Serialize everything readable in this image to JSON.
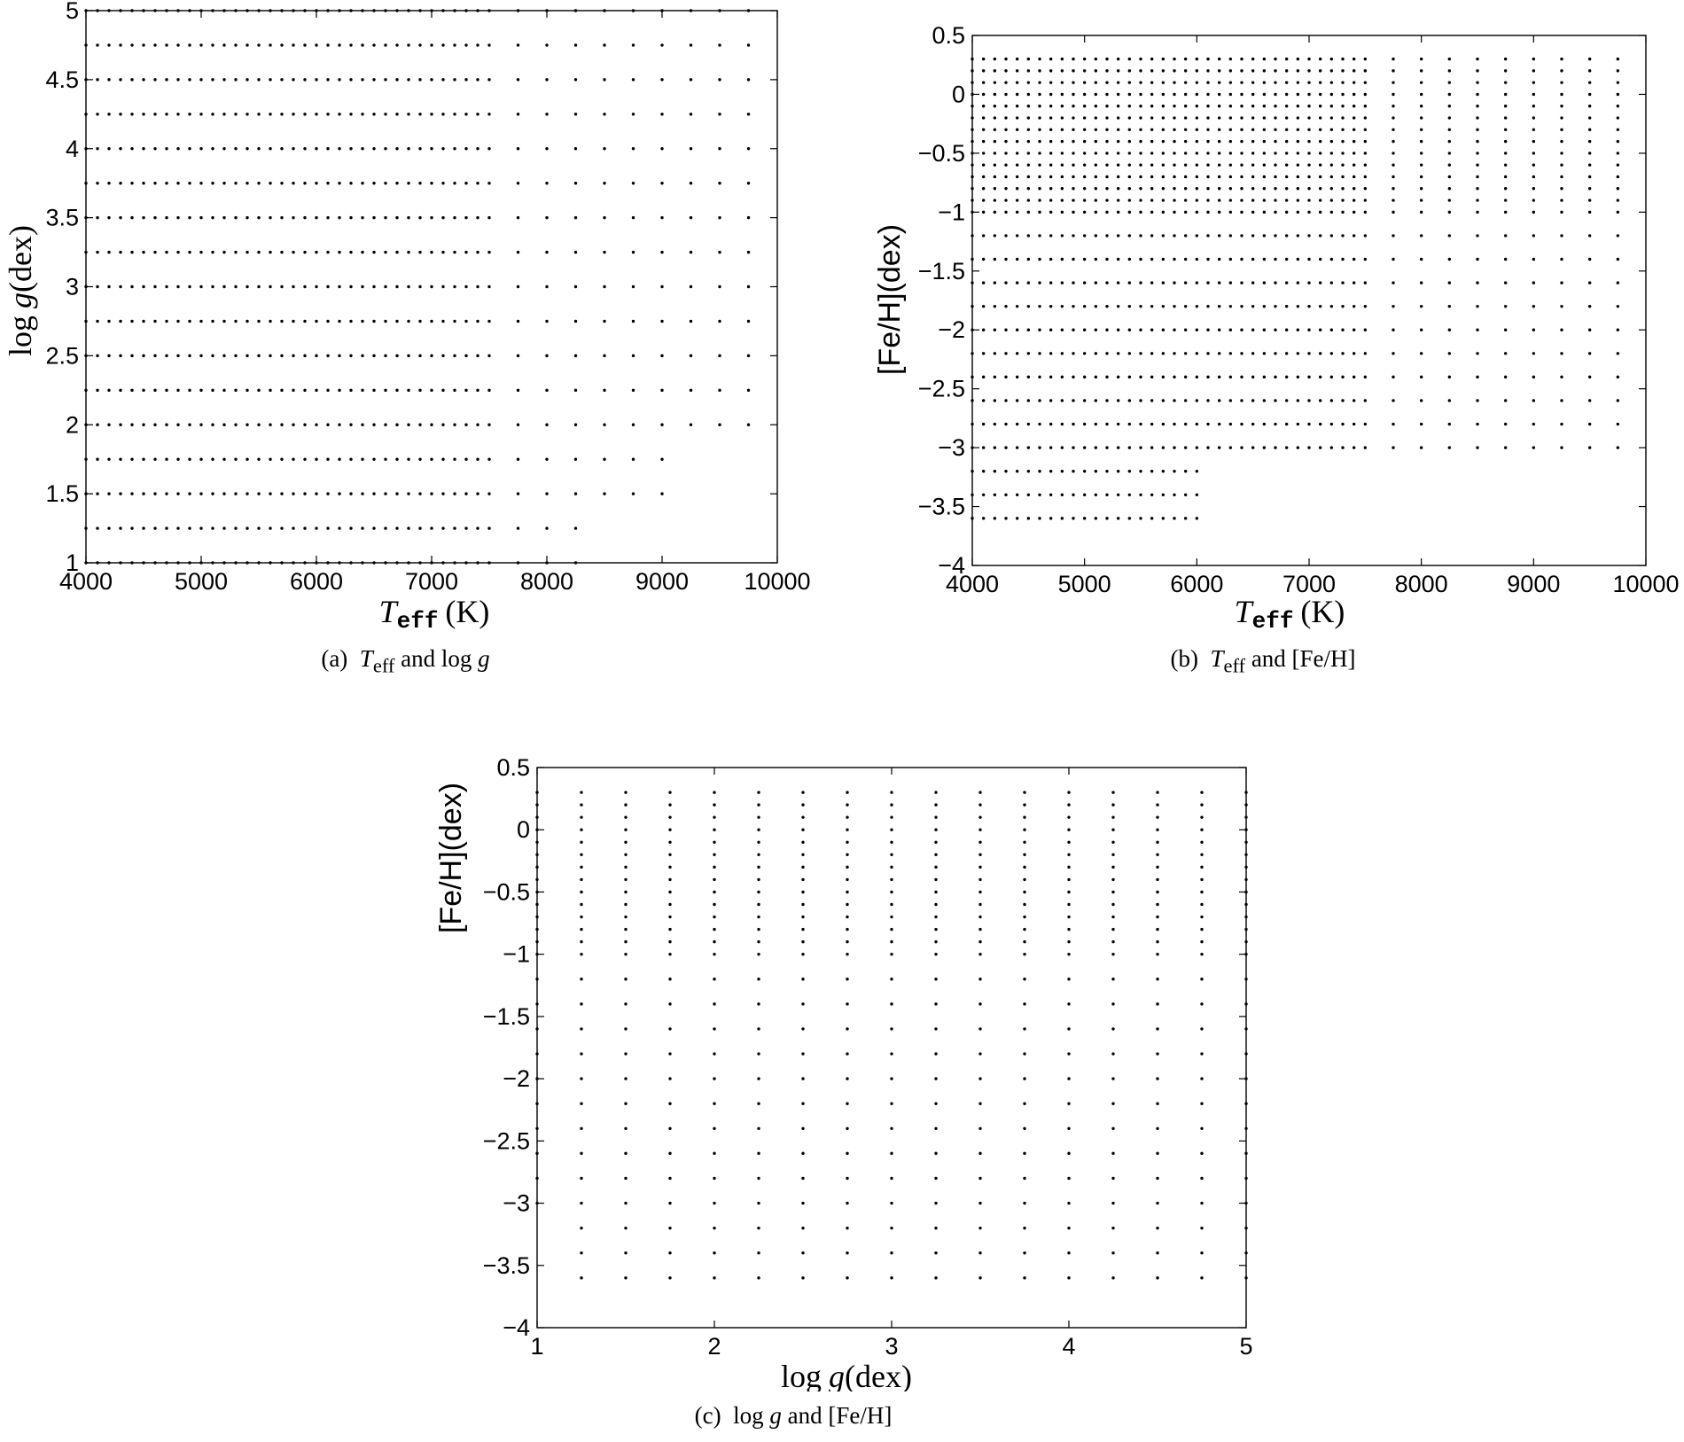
{
  "figures": {
    "a": {
      "caption_prefix": "(a)",
      "caption_var1": "T",
      "caption_sub1": "eff",
      "caption_mid": "and log",
      "caption_var2": "g",
      "xlabel_var": "T",
      "xlabel_sub": "eff",
      "xlabel_unit": "(K)",
      "ylabel_log": "log",
      "ylabel_var": "g",
      "ylabel_unit": "(dex)"
    },
    "b": {
      "caption_prefix": "(b)",
      "caption_var1": "T",
      "caption_sub1": "eff",
      "caption_mid": "and [Fe/H]",
      "xlabel_var": "T",
      "xlabel_sub": "eff",
      "xlabel_unit": "(K)",
      "ylabel": "[Fe/H](dex)"
    },
    "c": {
      "caption_prefix": "(c)",
      "caption_log": "log",
      "caption_var1": "g",
      "caption_mid": "and [Fe/H]",
      "xlabel_log": "log",
      "xlabel_var": "g",
      "xlabel_unit": "(dex)",
      "ylabel": "[Fe/H](dex)"
    }
  },
  "chart_data": [
    {
      "id": "a",
      "type": "scatter",
      "xlim": [
        4000,
        10000
      ],
      "ylim": [
        1,
        5
      ],
      "xticks": [
        4000,
        5000,
        6000,
        7000,
        8000,
        9000,
        10000
      ],
      "yticks": [
        1,
        1.5,
        2,
        2.5,
        3,
        3.5,
        4,
        4.5,
        5
      ],
      "xtick_labels": [
        "4000",
        "5000",
        "6000",
        "7000",
        "8000",
        "9000",
        "10000"
      ],
      "ytick_labels": [
        "1",
        "1.5",
        "2",
        "2.5",
        "3",
        "3.5",
        "4",
        "4.5",
        "5"
      ],
      "grid": false,
      "grid_description": {
        "cool_teff": {
          "start": 4000,
          "stop": 7500,
          "step": 100
        },
        "hot_teff": {
          "start": 7750,
          "stop": 9750,
          "step": 250
        },
        "logg_values": [
          1,
          1.25,
          1.5,
          1.75,
          2,
          2.25,
          2.5,
          2.75,
          3,
          3.25,
          3.5,
          3.75,
          4,
          4.25,
          4.5,
          4.75,
          5
        ],
        "hot_max_teff_by_logg": {
          "1": 8250,
          "1.25": 8250,
          "1.5": 9000,
          "1.75": 9000
        }
      }
    },
    {
      "id": "b",
      "type": "scatter",
      "xlim": [
        4000,
        10000
      ],
      "ylim": [
        -4,
        0.5
      ],
      "xticks": [
        4000,
        5000,
        6000,
        7000,
        8000,
        9000,
        10000
      ],
      "yticks": [
        -4,
        -3.5,
        -3,
        -2.5,
        -2,
        -1.5,
        -1,
        -0.5,
        0,
        0.5
      ],
      "xtick_labels": [
        "4000",
        "5000",
        "6000",
        "7000",
        "8000",
        "9000",
        "10000"
      ],
      "ytick_labels": [
        "−4",
        "−3.5",
        "−3",
        "−2.5",
        "−2",
        "−1.5",
        "−1",
        "−0.5",
        "0",
        "0.5"
      ],
      "grid": false,
      "grid_description": {
        "cool_teff": {
          "start": 4000,
          "stop": 7500,
          "step": 100
        },
        "hot_teff": {
          "start": 7750,
          "stop": 9750,
          "step": 250
        },
        "feh_fine": {
          "start": -1.0,
          "stop": 0.3,
          "step": 0.1
        },
        "feh_coarse": {
          "start": -3.6,
          "stop": -1.2,
          "step": 0.2
        },
        "cool_teff_max_below_feh_minus3": 6000,
        "hot_min_feh": -3.0
      }
    },
    {
      "id": "c",
      "type": "scatter",
      "xlim": [
        1,
        5
      ],
      "ylim": [
        -4,
        0.5
      ],
      "xticks": [
        1,
        2,
        3,
        4,
        5
      ],
      "yticks": [
        -4,
        -3.5,
        -3,
        -2.5,
        -2,
        -1.5,
        -1,
        -0.5,
        0,
        0.5
      ],
      "xtick_labels": [
        "1",
        "2",
        "3",
        "4",
        "5"
      ],
      "ytick_labels": [
        "−4",
        "−3.5",
        "−3",
        "−2.5",
        "−2",
        "−1.5",
        "−1",
        "−0.5",
        "0",
        "0.5"
      ],
      "grid": false,
      "grid_description": {
        "logg_values": [
          1,
          1.25,
          1.5,
          1.75,
          2,
          2.25,
          2.5,
          2.75,
          3,
          3.25,
          3.5,
          3.75,
          4,
          4.25,
          4.5,
          4.75,
          5
        ],
        "feh_fine": {
          "start": -1.0,
          "stop": 0.3,
          "step": 0.1
        },
        "feh_coarse": {
          "start": -3.6,
          "stop": -1.2,
          "step": 0.2
        },
        "logg_with_no_feh_below_minus3": 1
      }
    }
  ]
}
